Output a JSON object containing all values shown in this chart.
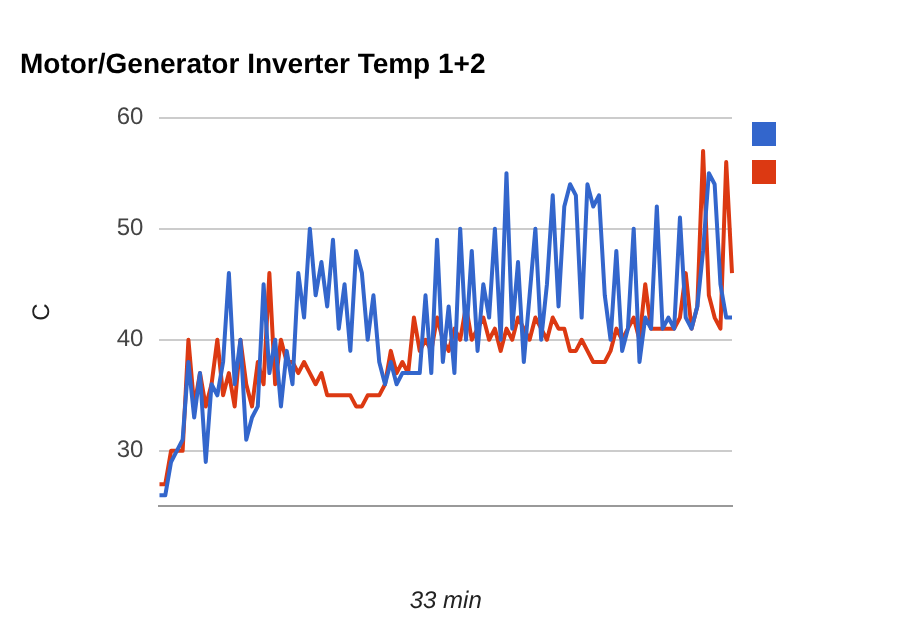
{
  "chart_data": {
    "type": "line",
    "title": "Motor/Generator Inverter Temp 1+2",
    "xlabel": "33 min",
    "ylabel": "C",
    "categories": [
      null,
      null,
      null,
      null,
      null,
      null,
      null,
      null,
      null,
      null,
      null,
      null,
      null,
      null,
      null,
      null,
      null,
      null,
      null,
      null,
      null,
      null,
      null,
      null,
      null,
      null,
      null,
      null,
      null,
      null,
      null,
      null,
      null,
      null,
      null,
      null,
      null,
      null,
      null,
      null,
      null,
      null,
      null,
      null,
      null,
      null,
      null,
      null,
      null,
      null,
      null,
      null,
      null,
      null,
      null,
      null,
      null,
      null,
      null,
      null,
      null,
      null,
      null,
      null,
      null,
      null,
      null,
      null,
      null,
      null,
      null,
      null,
      null,
      null,
      null,
      null,
      null,
      null,
      null,
      null,
      null,
      null,
      null,
      null,
      null,
      null,
      null,
      null,
      null,
      null,
      null,
      null,
      null,
      null,
      null,
      null,
      null,
      null,
      null,
      null
    ],
    "series": [
      {
        "color": "#3366cc",
        "values": [
          26,
          26,
          29,
          30,
          31,
          38,
          33,
          37,
          29,
          36,
          35,
          38,
          46,
          36,
          40,
          31,
          33,
          34,
          45,
          37,
          40,
          34,
          39,
          36,
          46,
          42,
          50,
          44,
          47,
          43,
          49,
          41,
          45,
          39,
          48,
          46,
          40,
          44,
          38,
          36,
          38,
          36,
          37,
          37,
          37,
          37,
          44,
          37,
          49,
          38,
          43,
          37,
          50,
          40,
          48,
          39,
          45,
          42,
          50,
          40,
          55,
          41,
          47,
          38,
          44,
          50,
          40,
          45,
          53,
          43,
          52,
          54,
          53,
          42,
          54,
          52,
          53,
          44,
          40,
          48,
          39,
          41,
          50,
          38,
          42,
          41,
          52,
          41,
          42,
          41,
          51,
          42,
          41,
          43,
          48,
          55,
          54,
          45,
          42,
          42
        ]
      },
      {
        "color": "#dc3912",
        "values": [
          27,
          27,
          30,
          30,
          30,
          40,
          34,
          37,
          34,
          36,
          40,
          35,
          37,
          34,
          40,
          36,
          34,
          38,
          36,
          46,
          36,
          40,
          38,
          38,
          37,
          38,
          37,
          36,
          37,
          35,
          35,
          35,
          35,
          35,
          34,
          34,
          35,
          35,
          35,
          36,
          39,
          37,
          38,
          37,
          42,
          39,
          40,
          39,
          42,
          40,
          39,
          41,
          40,
          43,
          40,
          41,
          42,
          40,
          41,
          39,
          41,
          40,
          42,
          41,
          40,
          42,
          41,
          40,
          42,
          41,
          41,
          39,
          39,
          40,
          39,
          38,
          38,
          38,
          39,
          41,
          40,
          41,
          42,
          40,
          45,
          41,
          41,
          41,
          41,
          41,
          42,
          46,
          41,
          43,
          57,
          44,
          42,
          41,
          56,
          46
        ]
      }
    ],
    "ylim": [
      25,
      60
    ],
    "yticks": [
      30,
      40,
      50,
      60
    ],
    "grid": "y"
  }
}
